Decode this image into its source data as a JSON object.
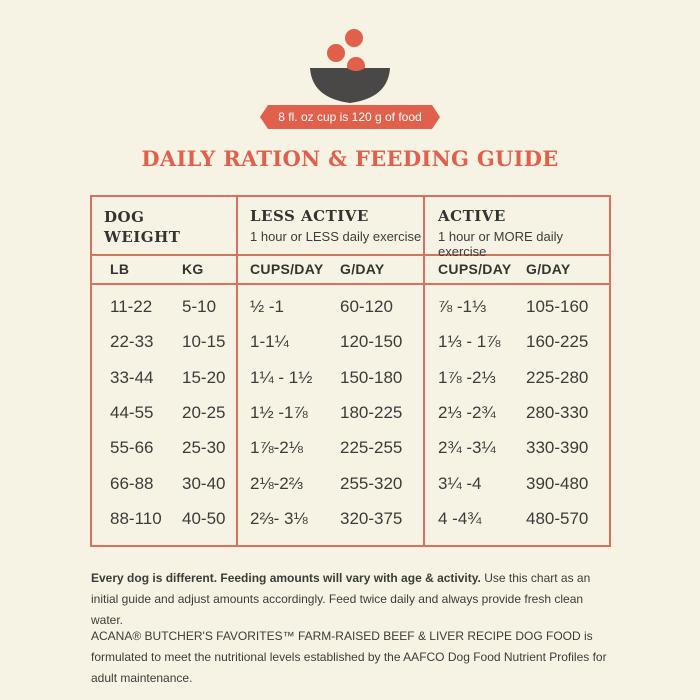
{
  "banner": {
    "text": "8 fl. oz cup is 120 g of food"
  },
  "title": "DAILY RATION & FEEDING GUIDE",
  "table": {
    "groups": [
      {
        "title": "DOG WEIGHT",
        "title_line1": "DOG",
        "title_line2": "WEIGHT",
        "subtitle": ""
      },
      {
        "title": "LESS ACTIVE",
        "subtitle": "1 hour or LESS daily exercise"
      },
      {
        "title": "ACTIVE",
        "subtitle": "1 hour or MORE daily exercise"
      }
    ],
    "columns": [
      "LB",
      "KG",
      "CUPS/DAY",
      "G/DAY",
      "CUPS/DAY",
      "G/DAY"
    ],
    "rows": [
      [
        "11-22",
        "5-10",
        "½ -1",
        "60-120",
        "⅞ -1⅓",
        "105-160"
      ],
      [
        "22-33",
        "10-15",
        "1-1¼",
        "120-150",
        "1⅓ - 1⅞",
        "160-225"
      ],
      [
        "33-44",
        "15-20",
        "1¼ - 1½",
        "150-180",
        "1⅞ -2⅓",
        "225-280"
      ],
      [
        "44-55",
        "20-25",
        "1½ -1⅞",
        "180-225",
        "2⅓ -2¾",
        "280-330"
      ],
      [
        "55-66",
        "25-30",
        "1⅞-2⅛",
        "225-255",
        "2¾ -3¼",
        "330-390"
      ],
      [
        "66-88",
        "30-40",
        "2⅛-2⅔",
        "255-320",
        "3¼ -4",
        "390-480"
      ],
      [
        "88-110",
        "40-50",
        "2⅔- 3⅛",
        "320-375",
        "4 -4¾",
        "480-570"
      ]
    ]
  },
  "notes": {
    "bold_lead": "Every dog is different. Feeding amounts will vary with age & activity.",
    "rest": " Use this chart as an initial guide and adjust amounts accordingly. Feed twice daily and always provide fresh clean water.",
    "product": "ACANA® BUTCHER'S FAVORITES™ FARM-RAISED BEEF & LIVER RECIPE DOG FOOD is formulated to meet the nutritional levels established by the AAFCO Dog Food Nutrient Profiles for adult maintenance."
  },
  "colors": {
    "accent": "#e0604b",
    "background": "#f7f3e4",
    "bowl": "#4a4747"
  },
  "icons": {
    "bowl": "food-bowl-icon"
  }
}
